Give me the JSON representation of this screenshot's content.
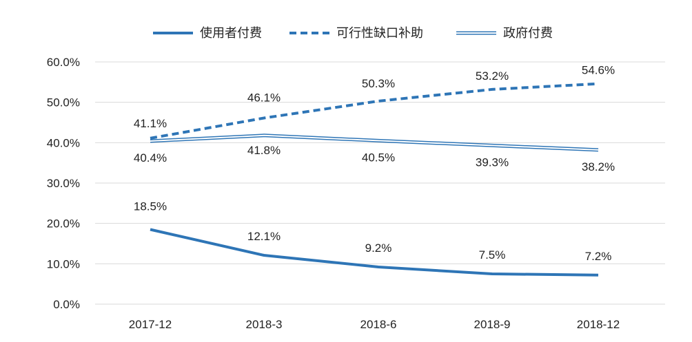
{
  "chart_data": {
    "type": "line",
    "categories": [
      "2017-12",
      "2018-3",
      "2018-6",
      "2018-9",
      "2018-12"
    ],
    "ylim": [
      0,
      60
    ],
    "yticks": [
      0,
      10,
      20,
      30,
      40,
      50,
      60
    ],
    "ytick_labels": [
      "0.0%",
      "10.0%",
      "20.0%",
      "30.0%",
      "40.0%",
      "50.0%",
      "60.0%"
    ],
    "grid": "horizontal",
    "legend_position": "top",
    "series": [
      {
        "name": "使用者付费",
        "style": "solid",
        "color": "#2e75b6",
        "values": [
          18.5,
          12.1,
          9.2,
          7.5,
          7.2
        ],
        "labels": [
          "18.5%",
          "12.1%",
          "9.2%",
          "7.5%",
          "7.2%"
        ],
        "label_position": "above"
      },
      {
        "name": "可行性缺口补助",
        "style": "dashed",
        "color": "#2e75b6",
        "values": [
          41.1,
          46.1,
          50.3,
          53.2,
          54.6
        ],
        "labels": [
          "41.1%",
          "46.1%",
          "50.3%",
          "53.2%",
          "54.6%"
        ],
        "label_position": "above"
      },
      {
        "name": "政府付费",
        "style": "double",
        "color": "#2e75b6",
        "values": [
          40.4,
          41.8,
          40.5,
          39.3,
          38.2
        ],
        "labels": [
          "40.4%",
          "41.8%",
          "40.5%",
          "39.3%",
          "38.2%"
        ],
        "label_position": "below"
      }
    ]
  }
}
